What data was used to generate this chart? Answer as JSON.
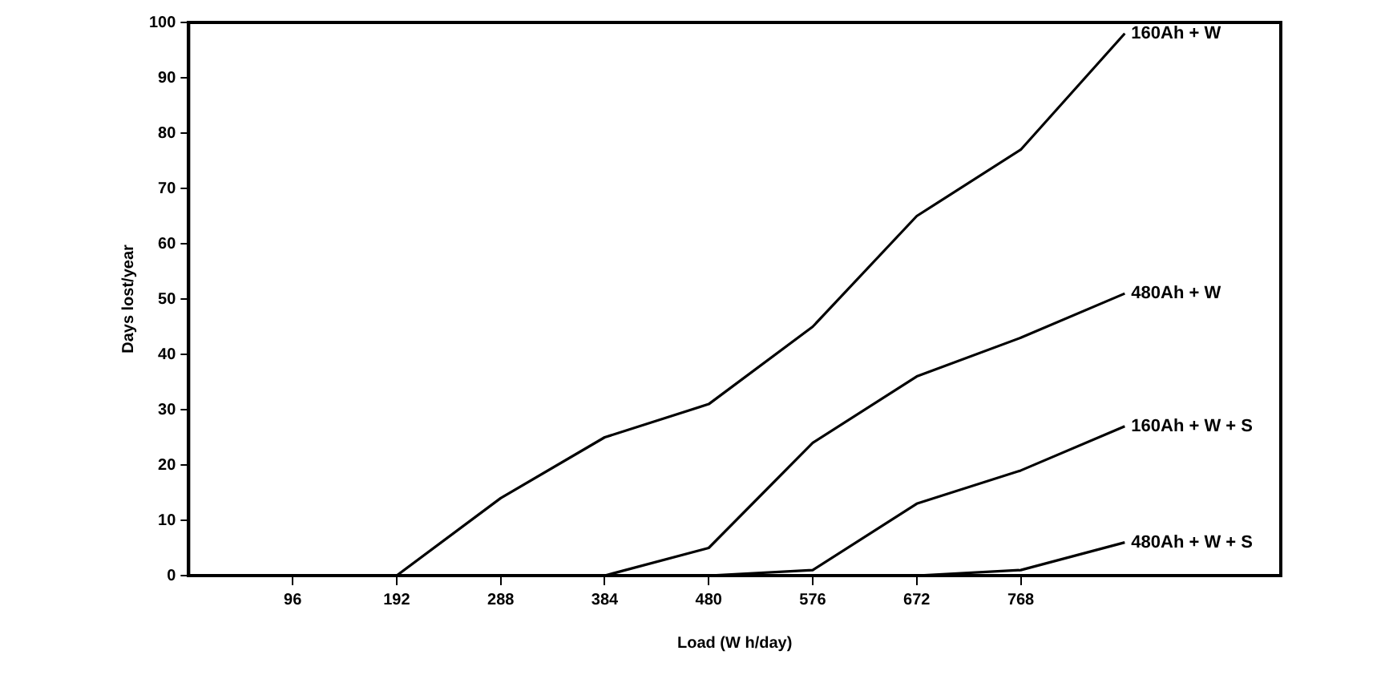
{
  "chart_data": {
    "type": "line",
    "xlabel": "Load (W h/day)",
    "ylabel": "Days lost/year",
    "x": [
      96,
      192,
      288,
      384,
      480,
      576,
      672,
      768,
      864
    ],
    "series": [
      {
        "name": "160Ah + W",
        "color": "#000000",
        "values": [
          0,
          0,
          14,
          25,
          31,
          45,
          65,
          77,
          98
        ]
      },
      {
        "name": "480Ah + W",
        "color": "#000000",
        "values": [
          0,
          0,
          0,
          0,
          5,
          24,
          36,
          43,
          51
        ]
      },
      {
        "name": "160Ah + W + S",
        "color": "#000000",
        "values": [
          0,
          0,
          0,
          0,
          0,
          1,
          13,
          19,
          27
        ]
      },
      {
        "name": "480Ah + W + S",
        "color": "#000000",
        "values": [
          0,
          0,
          0,
          0,
          0,
          0,
          0,
          1,
          6
        ]
      }
    ],
    "xlim": [
      0,
      1008
    ],
    "xticks": [
      96,
      192,
      288,
      384,
      480,
      576,
      672,
      768
    ],
    "ylim": [
      0,
      100
    ],
    "yticks": [
      0,
      10,
      20,
      30,
      40,
      50,
      60,
      70,
      80,
      90,
      100
    ],
    "grid": false,
    "legend": false,
    "marker": "none",
    "line_style": "solid"
  }
}
